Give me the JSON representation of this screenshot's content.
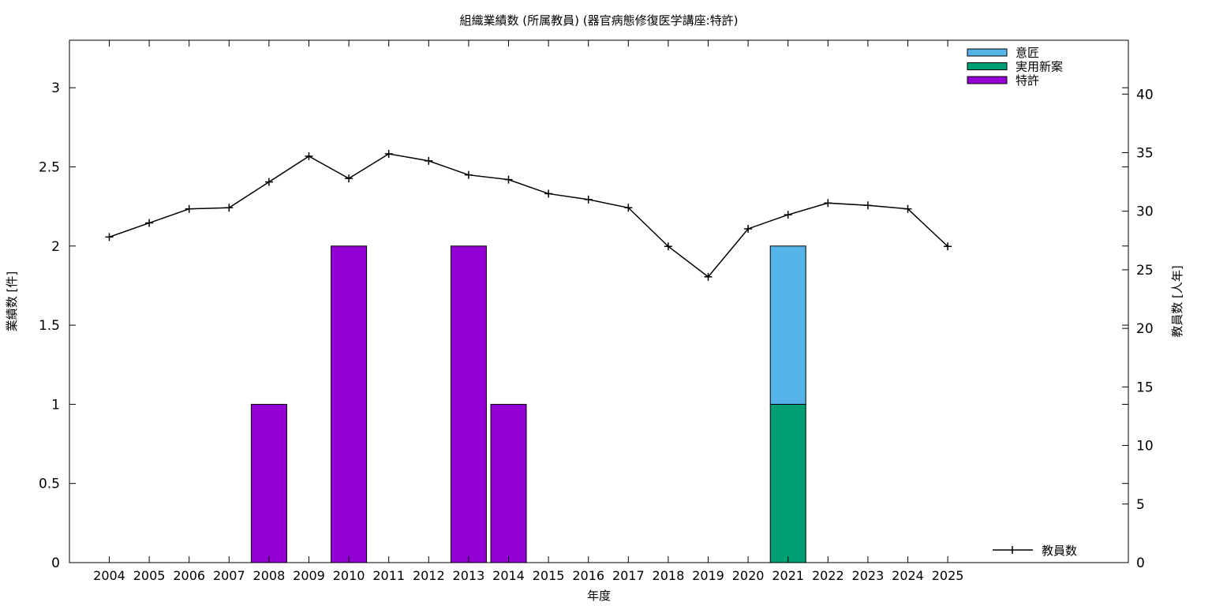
{
  "chart_data": {
    "type": "bar",
    "title": "組織業績数 (所属教員) (器官病態修復医学講座:特許)",
    "xlabel": "年度",
    "ylabel": "業績数 [件]",
    "y2label": "教員数 [人年]",
    "categories": [
      "2004",
      "2005",
      "2006",
      "2007",
      "2008",
      "2009",
      "2010",
      "2011",
      "2012",
      "2013",
      "2014",
      "2015",
      "2016",
      "2017",
      "2018",
      "2019",
      "2020",
      "2021",
      "2022",
      "2023",
      "2024",
      "2025"
    ],
    "ylim": [
      0,
      3.3
    ],
    "y2lim": [
      0,
      44.6
    ],
    "yticks": [
      "0",
      "0.5",
      "1",
      "1.5",
      "2",
      "2.5",
      "3"
    ],
    "y2ticks": [
      "0",
      "5",
      "10",
      "15",
      "20",
      "25",
      "30",
      "35",
      "40"
    ],
    "stacked": true,
    "series": [
      {
        "name": "特許",
        "color": "#9400d3",
        "values": [
          0,
          0,
          0,
          0,
          1,
          0,
          2,
          0,
          0,
          2,
          1,
          0,
          0,
          0,
          0,
          0,
          0,
          0,
          0,
          0,
          0,
          0
        ]
      },
      {
        "name": "実用新案",
        "color": "#009e73",
        "values": [
          0,
          0,
          0,
          0,
          0,
          0,
          0,
          0,
          0,
          0,
          0,
          0,
          0,
          0,
          0,
          0,
          0,
          1,
          0,
          0,
          0,
          0
        ]
      },
      {
        "name": "意匠",
        "color": "#56b4e9",
        "values": [
          0,
          0,
          0,
          0,
          0,
          0,
          0,
          0,
          0,
          0,
          0,
          0,
          0,
          0,
          0,
          0,
          0,
          1,
          0,
          0,
          0,
          0
        ]
      }
    ],
    "legend_order": [
      "意匠",
      "実用新案",
      "特許"
    ],
    "line_series": {
      "name": "教員数",
      "axis": "right",
      "color": "#000000",
      "values": [
        27.8,
        29.0,
        30.2,
        30.3,
        32.5,
        34.7,
        32.8,
        34.9,
        34.3,
        33.1,
        32.7,
        31.5,
        31.0,
        30.3,
        27.0,
        24.4,
        28.5,
        29.7,
        30.7,
        30.5,
        30.2,
        27.0
      ]
    },
    "legend_placement": "top-right",
    "line_legend_placement": "bottom-right",
    "grid": false
  }
}
